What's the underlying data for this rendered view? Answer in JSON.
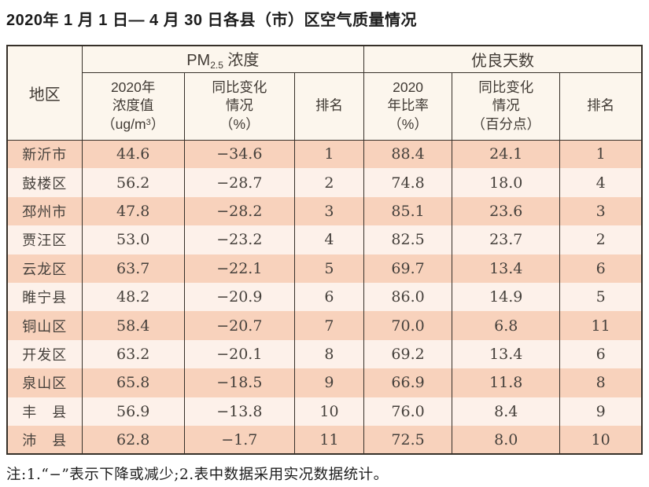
{
  "title": "2020年 1 月 1 日— 4 月 30 日各县（市）区空气质量情况",
  "colors": {
    "row_dark": "#f8d2bc",
    "row_light": "#fdf1ea",
    "header_bg": "#fcf6ed",
    "border": "#363029",
    "text": "#3f3833"
  },
  "table": {
    "header": {
      "region": "地区",
      "pm_group": {
        "prefix": "PM",
        "sub": "2.5",
        "suffix": " 浓度"
      },
      "good_group": "优良天数",
      "pm_value": {
        "lines": [
          "2020年",
          "浓度值"
        ],
        "unit_pre": "（ug/m",
        "unit_sup": "3",
        "unit_post": "）"
      },
      "pm_change": {
        "lines": [
          "同比变化",
          "情况",
          "（%）"
        ]
      },
      "pm_rank": "排名",
      "good_rate": {
        "lines": [
          "2020",
          "年比率",
          "（%）"
        ]
      },
      "good_change": {
        "lines": [
          "同比变化",
          "情况",
          "（百分点）"
        ]
      },
      "good_rank": "排名"
    },
    "rows": [
      [
        "新沂市",
        "44.6",
        "−34.6",
        "1",
        "88.4",
        "24.1",
        "1"
      ],
      [
        "鼓楼区",
        "56.2",
        "−28.7",
        "2",
        "74.8",
        "18.0",
        "4"
      ],
      [
        "邳州市",
        "47.8",
        "−28.2",
        "3",
        "85.1",
        "23.6",
        "3"
      ],
      [
        "贾汪区",
        "53.0",
        "−23.2",
        "4",
        "82.5",
        "23.7",
        "2"
      ],
      [
        "云龙区",
        "63.7",
        "−22.1",
        "5",
        "69.7",
        "13.4",
        "6"
      ],
      [
        "睢宁县",
        "48.2",
        "−20.9",
        "6",
        "86.0",
        "14.9",
        "5"
      ],
      [
        "铜山区",
        "58.4",
        "−20.7",
        "7",
        "70.0",
        "6.8",
        "11"
      ],
      [
        "开发区",
        "63.2",
        "−20.1",
        "8",
        "69.2",
        "13.4",
        "6"
      ],
      [
        "泉山区",
        "65.8",
        "−18.5",
        "9",
        "66.9",
        "11.8",
        "8"
      ],
      [
        "丰　县",
        "56.9",
        "−13.8",
        "10",
        "76.0",
        "8.4",
        "9"
      ],
      [
        "沛　县",
        "62.8",
        "−1.7",
        "11",
        "72.5",
        "8.0",
        "10"
      ]
    ]
  },
  "footnote": "注:1.“−”表示下降或减少;2.表中数据采用实况数据统计。"
}
